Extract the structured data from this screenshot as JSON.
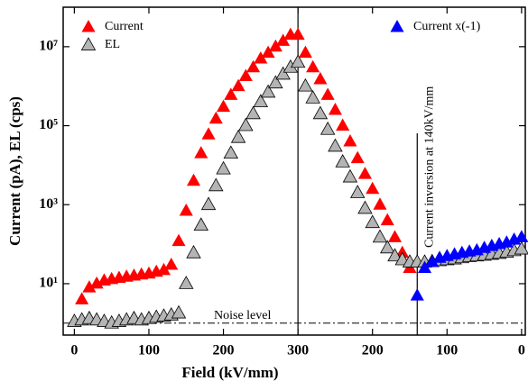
{
  "chart_data": {
    "type": "scatter",
    "xlabel": "Field (kV/mm)",
    "ylabel": "Current (pA), EL (cps)",
    "xlim": [
      -15,
      605
    ],
    "ylim": [
      0.5,
      100000000
    ],
    "log_y": true,
    "xticks": [
      0,
      100,
      200,
      300,
      {
        "value": 400,
        "label": "200"
      },
      {
        "value": 500,
        "label": "100"
      },
      {
        "value": 600,
        "label": "0"
      }
    ],
    "yticks": [
      {
        "value": 10,
        "label": "10¹"
      },
      {
        "value": 1000,
        "label": "10³"
      },
      {
        "value": 100000,
        "label": "10⁵"
      },
      {
        "value": 10000000,
        "label": "10⁷"
      }
    ],
    "vlines": [
      300,
      460
    ],
    "hline": 1,
    "annotations": [
      "Noise level",
      "Current inversion at 140kV/mm"
    ],
    "series": [
      {
        "name": "Current",
        "color": "#ff0000",
        "legend": "upper left",
        "x": [
          10,
          20,
          30,
          40,
          50,
          60,
          70,
          80,
          90,
          100,
          110,
          120,
          130,
          140,
          150,
          160,
          170,
          180,
          190,
          200,
          210,
          220,
          230,
          240,
          250,
          260,
          270,
          280,
          290,
          300,
          310,
          320,
          330,
          340,
          350,
          360,
          370,
          380,
          390,
          400,
          410,
          420,
          430,
          440,
          450
        ],
        "values": [
          4,
          8,
          10,
          12,
          13,
          14,
          15,
          16,
          17,
          18,
          20,
          22,
          30,
          120,
          700,
          4000,
          20000,
          60000,
          150000,
          300000,
          600000,
          1000000,
          1800000,
          3000000,
          5000000,
          7000000,
          10000000,
          14000000,
          20000000,
          20000000,
          7000000,
          3000000,
          1500000,
          600000,
          250000,
          100000,
          40000,
          15000,
          6000,
          2500,
          1000,
          400,
          150,
          60,
          25
        ]
      },
      {
        "name": "EL",
        "color": "#b4b4b4",
        "legend": "upper left",
        "x": [
          0,
          10,
          20,
          30,
          40,
          50,
          60,
          70,
          80,
          90,
          100,
          110,
          120,
          130,
          140,
          150,
          160,
          170,
          180,
          190,
          200,
          210,
          220,
          230,
          240,
          250,
          260,
          270,
          280,
          290,
          300,
          310,
          320,
          330,
          340,
          350,
          360,
          370,
          380,
          390,
          400,
          410,
          420,
          430,
          440,
          450,
          460,
          470,
          480,
          490,
          500,
          510,
          520,
          530,
          540,
          550,
          560,
          570,
          580,
          590,
          600
        ],
        "values": [
          1.1,
          1.2,
          1.3,
          1.2,
          1.1,
          1.0,
          1.1,
          1.2,
          1.3,
          1.2,
          1.3,
          1.4,
          1.5,
          1.6,
          1.8,
          10,
          60,
          300,
          1000,
          3000,
          8000,
          20000,
          50000,
          100000,
          200000,
          400000,
          700000,
          1200000,
          2000000,
          3000000,
          4000000,
          1000000,
          500000,
          200000,
          80000,
          30000,
          12000,
          5000,
          2000,
          800,
          350,
          150,
          80,
          50,
          40,
          35,
          35,
          35,
          36,
          38,
          40,
          42,
          45,
          48,
          50,
          52,
          55,
          58,
          62,
          68,
          75
        ]
      },
      {
        "name": "Current x(-1)",
        "color": "#0000ff",
        "legend": "upper right",
        "x": [
          460,
          470,
          480,
          490,
          500,
          510,
          520,
          530,
          540,
          550,
          560,
          570,
          580,
          590,
          600
        ],
        "values": [
          5,
          25,
          35,
          45,
          50,
          55,
          60,
          65,
          70,
          80,
          90,
          100,
          110,
          130,
          150
        ]
      }
    ]
  }
}
